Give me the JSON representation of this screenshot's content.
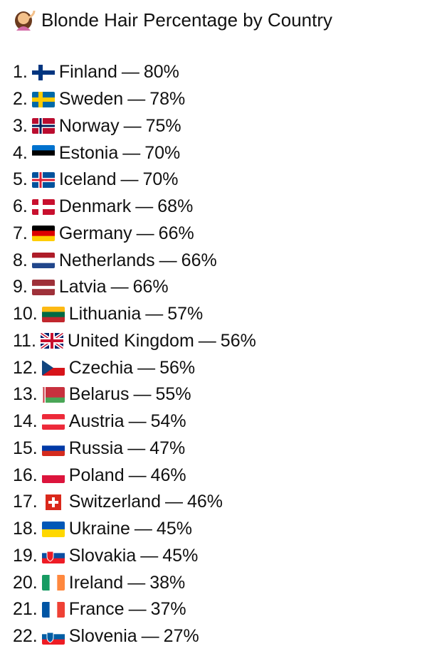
{
  "header": {
    "title": "Blonde Hair Percentage by Country"
  },
  "separator": "—",
  "items": [
    {
      "rank": "1.",
      "country": "Finland",
      "value": "80%"
    },
    {
      "rank": "2.",
      "country": "Sweden",
      "value": "78%"
    },
    {
      "rank": "3.",
      "country": "Norway",
      "value": "75%"
    },
    {
      "rank": "4.",
      "country": "Estonia",
      "value": "70%"
    },
    {
      "rank": "5.",
      "country": "Iceland",
      "value": "70%"
    },
    {
      "rank": "6.",
      "country": "Denmark",
      "value": "68%"
    },
    {
      "rank": "7.",
      "country": "Germany",
      "value": "66%"
    },
    {
      "rank": "8.",
      "country": "Netherlands",
      "value": "66%"
    },
    {
      "rank": "9.",
      "country": "Latvia",
      "value": "66%"
    },
    {
      "rank": "10.",
      "country": "Lithuania",
      "value": "57%"
    },
    {
      "rank": "11.",
      "country": "United Kingdom",
      "value": "56%"
    },
    {
      "rank": "12.",
      "country": "Czechia",
      "value": "56%"
    },
    {
      "rank": "13.",
      "country": "Belarus",
      "value": "55%"
    },
    {
      "rank": "14.",
      "country": "Austria",
      "value": "54%"
    },
    {
      "rank": "15.",
      "country": "Russia",
      "value": "47%"
    },
    {
      "rank": "16.",
      "country": "Poland",
      "value": "46%"
    },
    {
      "rank": "17.",
      "country": "Switzerland",
      "value": "46%"
    },
    {
      "rank": "18.",
      "country": "Ukraine",
      "value": "45%"
    },
    {
      "rank": "19.",
      "country": "Slovakia",
      "value": "45%"
    },
    {
      "rank": "20.",
      "country": "Ireland",
      "value": "38%"
    },
    {
      "rank": "21.",
      "country": "France",
      "value": "37%"
    },
    {
      "rank": "22.",
      "country": "Slovenia",
      "value": "27%"
    }
  ]
}
